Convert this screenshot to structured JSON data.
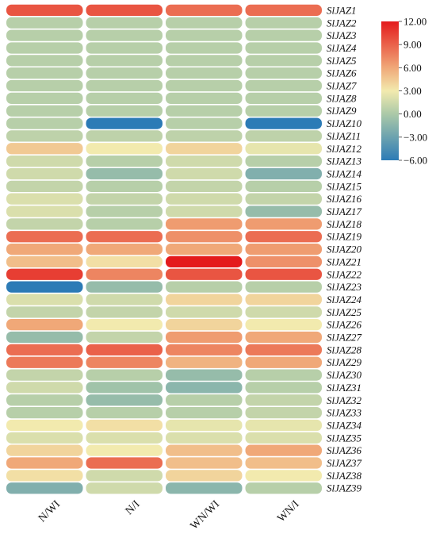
{
  "chart_data": {
    "type": "heatmap",
    "columns": [
      "N/WI",
      "N/I",
      "WN/WI",
      "WN/I"
    ],
    "rows": [
      "SlJAZ1",
      "SlJAZ2",
      "SlJAZ3",
      "SlJAZ4",
      "SlJAZ5",
      "SlJAZ6",
      "SlJAZ7",
      "SlJAZ8",
      "SlJAZ9",
      "SlJAZ10",
      "SlJAZ11",
      "SlJAZ12",
      "SlJAZ13",
      "SlJAZ14",
      "SlJAZ15",
      "SlJAZ16",
      "SlJAZ17",
      "SlJAZ18",
      "SlJAZ19",
      "SlJAZ20",
      "SlJAZ21",
      "SlJAZ22",
      "SlJAZ23",
      "SlJAZ24",
      "SlJAZ25",
      "SlJAZ26",
      "SlJAZ27",
      "SlJAZ28",
      "SlJAZ29",
      "SlJAZ30",
      "SlJAZ31",
      "SlJAZ32",
      "SlJAZ33",
      "SlJAZ34",
      "SlJAZ35",
      "SlJAZ36",
      "SlJAZ37",
      "SlJAZ38",
      "SlJAZ39"
    ],
    "values": [
      [
        9.5,
        9.5,
        8.5,
        8.5
      ],
      [
        0.5,
        0.5,
        0.5,
        0.5
      ],
      [
        0.5,
        0.5,
        0.5,
        0.5
      ],
      [
        0.5,
        0.5,
        0.5,
        0.5
      ],
      [
        0.5,
        0.5,
        0.5,
        0.5
      ],
      [
        0.5,
        0.5,
        0.5,
        0.5
      ],
      [
        0.5,
        0.5,
        0.5,
        0.5
      ],
      [
        0.5,
        0.5,
        0.5,
        0.5
      ],
      [
        0.5,
        0.5,
        0.5,
        0.5
      ],
      [
        0.5,
        -6.0,
        0.5,
        -6.0
      ],
      [
        0.8,
        0.8,
        0.8,
        0.8
      ],
      [
        4.5,
        3.0,
        4.0,
        2.5
      ],
      [
        1.5,
        0.5,
        1.5,
        0.5
      ],
      [
        1.5,
        -1.0,
        1.5,
        -2.0
      ],
      [
        1.0,
        0.5,
        1.0,
        0.5
      ],
      [
        2.0,
        1.0,
        1.5,
        1.0
      ],
      [
        2.0,
        0.5,
        1.5,
        -1.0
      ],
      [
        1.0,
        0.5,
        6.5,
        6.5
      ],
      [
        8.5,
        8.5,
        7.0,
        8.5
      ],
      [
        6.0,
        6.0,
        6.0,
        6.5
      ],
      [
        5.0,
        3.5,
        12.0,
        7.0
      ],
      [
        10.5,
        7.5,
        9.5,
        9.5
      ],
      [
        -6.0,
        -1.0,
        0.5,
        0.5
      ],
      [
        2.0,
        1.5,
        4.0,
        4.0
      ],
      [
        1.0,
        1.0,
        1.5,
        1.5
      ],
      [
        6.0,
        3.0,
        4.0,
        3.0
      ],
      [
        -1.0,
        1.0,
        6.5,
        6.0
      ],
      [
        8.5,
        9.0,
        7.5,
        8.0
      ],
      [
        8.0,
        7.5,
        5.5,
        6.0
      ],
      [
        1.0,
        0.5,
        -1.0,
        0.5
      ],
      [
        1.5,
        -0.5,
        -1.5,
        0.5
      ],
      [
        0.5,
        -1.0,
        0.5,
        1.0
      ],
      [
        0.5,
        0.5,
        0.5,
        1.0
      ],
      [
        3.0,
        3.5,
        2.5,
        2.5
      ],
      [
        2.0,
        2.0,
        2.0,
        2.0
      ],
      [
        4.0,
        3.0,
        5.0,
        6.0
      ],
      [
        6.0,
        8.5,
        5.0,
        5.0
      ],
      [
        3.5,
        1.5,
        4.0,
        3.0
      ],
      [
        -2.0,
        1.5,
        -1.5,
        0.5
      ]
    ],
    "colorbar": {
      "ticks": [
        "12.00",
        "9.00",
        "6.00",
        "3.00",
        "0.00",
        "−3.00",
        "−6.00"
      ],
      "tick_values": [
        12,
        9,
        6,
        3,
        0,
        -3,
        -6
      ],
      "range": [
        -6,
        12
      ],
      "stops": [
        {
          "value": -6,
          "color": "#2c7bb6"
        },
        {
          "value": 0,
          "color": "#abc9a8"
        },
        {
          "value": 3,
          "color": "#f2eaae"
        },
        {
          "value": 6,
          "color": "#f0a878"
        },
        {
          "value": 12,
          "color": "#e41a1c"
        }
      ]
    }
  }
}
